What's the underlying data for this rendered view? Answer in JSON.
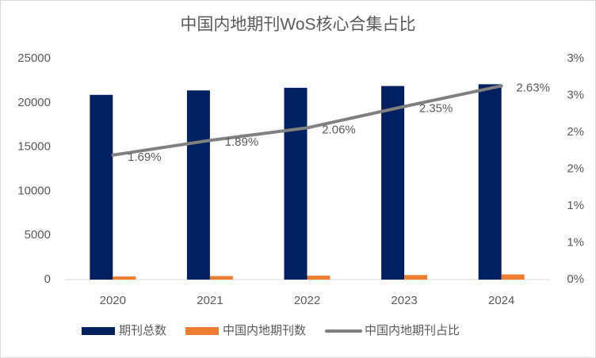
{
  "chart_data": {
    "type": "bar+line",
    "title": "中国内地期刊WoS核心合集占比",
    "categories": [
      "2020",
      "2021",
      "2022",
      "2023",
      "2024"
    ],
    "ylim": [
      0,
      25000
    ],
    "yticks": [
      0,
      5000,
      10000,
      15000,
      20000,
      25000
    ],
    "y2lim": [
      0,
      3
    ],
    "y2ticks": [
      {
        "value": 0,
        "label": "0%"
      },
      {
        "value": 0.5,
        "label": "1%"
      },
      {
        "value": 1,
        "label": "1%"
      },
      {
        "value": 1.5,
        "label": "2%"
      },
      {
        "value": 2,
        "label": "2%"
      },
      {
        "value": 2.5,
        "label": "3%"
      },
      {
        "value": 3,
        "label": "3%"
      }
    ],
    "legend": "bottom",
    "series": [
      {
        "name": "期刊总数",
        "type": "bar",
        "color": "#002060",
        "values": [
          20900,
          21400,
          21700,
          21900,
          22100
        ]
      },
      {
        "name": "中国内地期刊数",
        "type": "bar",
        "color": "#ed7d31",
        "values": [
          353,
          404,
          447,
          515,
          581
        ]
      },
      {
        "name": "中国内地期刊占比",
        "type": "line",
        "axis": "y2",
        "color": "#808080",
        "values": [
          1.69,
          1.89,
          2.06,
          2.35,
          2.63
        ],
        "value_labels": [
          "1.69%",
          "1.89%",
          "2.06%",
          "2.35%",
          "2.63%"
        ]
      }
    ]
  }
}
